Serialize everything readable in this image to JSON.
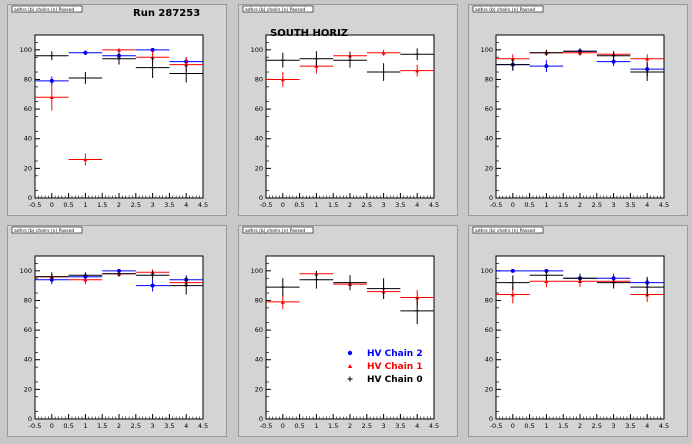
{
  "legend_entries": [
    {
      "label": "HV Chain 2",
      "color": "#0000ff",
      "marker": "circle"
    },
    {
      "label": "HV Chain 1",
      "color": "#ff0000",
      "marker": "triangle"
    },
    {
      "label": "HV Chain 0",
      "color": "#000000",
      "marker": "plus"
    }
  ],
  "chart_data": [
    {
      "type": "scatter",
      "histogram_title": "adhrs (b) chelrs (n) Passed",
      "title": "Run 287253",
      "xlim": [
        -0.5,
        4.5
      ],
      "ylim": [
        0,
        110
      ],
      "xticks": [
        "-0.5",
        "0",
        "0.5",
        "1",
        "1.5",
        "2",
        "2.5",
        "3",
        "3.5",
        "4",
        "4.5"
      ],
      "yticks": [
        "0",
        "20",
        "40",
        "60",
        "80",
        "100"
      ],
      "series": [
        {
          "name": "HV Chain 2",
          "color": "#0000ff",
          "x": [
            0,
            1,
            2,
            3,
            4
          ],
          "y": [
            79,
            98,
            96,
            100,
            92
          ],
          "yerr": [
            3,
            1.5,
            3,
            1,
            3
          ]
        },
        {
          "name": "HV Chain 1",
          "color": "#ff0000",
          "x": [
            0,
            1,
            2,
            3,
            4
          ],
          "y": [
            68,
            26,
            100,
            95,
            90
          ],
          "yerr": [
            9,
            4,
            1,
            4,
            5
          ]
        },
        {
          "name": "HV Chain 0",
          "color": "#000000",
          "x": [
            0,
            1,
            2,
            3,
            4
          ],
          "y": [
            96,
            81,
            94,
            88,
            84
          ],
          "yerr": [
            3,
            4,
            4,
            7,
            6
          ]
        }
      ]
    },
    {
      "type": "scatter",
      "histogram_title": "adhrs (b) chelrs (n) Passed",
      "title": "SOUTH HORIZ",
      "xlim": [
        -0.5,
        4.5
      ],
      "ylim": [
        0,
        110
      ],
      "xticks": [
        "-0.5",
        "0",
        "0.5",
        "1",
        "1.5",
        "2",
        "2.5",
        "3",
        "3.5",
        "4",
        "4.5"
      ],
      "yticks": [
        "0",
        "20",
        "40",
        "60",
        "80",
        "100"
      ],
      "series": [
        {
          "name": "HV Chain 1",
          "color": "#ff0000",
          "x": [
            0,
            1,
            2,
            3,
            4
          ],
          "y": [
            80,
            89,
            96,
            98,
            86
          ],
          "yerr": [
            5,
            5,
            3,
            2,
            4
          ]
        },
        {
          "name": "HV Chain 0",
          "color": "#000000",
          "x": [
            0,
            1,
            2,
            3,
            4
          ],
          "y": [
            93,
            94,
            93,
            85,
            97
          ],
          "yerr": [
            5,
            5,
            5,
            6,
            4
          ]
        }
      ]
    },
    {
      "type": "scatter",
      "histogram_title": "adhrs (b) chelrs (n) Passed",
      "xlim": [
        -0.5,
        4.5
      ],
      "ylim": [
        0,
        110
      ],
      "xticks": [
        "-0.5",
        "0",
        "0.5",
        "1",
        "1.5",
        "2",
        "2.5",
        "3",
        "3.5",
        "4",
        "4.5"
      ],
      "yticks": [
        "0",
        "20",
        "40",
        "60",
        "80",
        "100"
      ],
      "series": [
        {
          "name": "HV Chain 2",
          "color": "#0000ff",
          "x": [
            0,
            1,
            2,
            3,
            4
          ],
          "y": [
            90,
            89,
            99,
            92,
            87
          ],
          "yerr": [
            4,
            4,
            1,
            3,
            5
          ]
        },
        {
          "name": "HV Chain 1",
          "color": "#ff0000",
          "x": [
            0,
            1,
            2,
            3,
            4
          ],
          "y": [
            94,
            98,
            98,
            97,
            94
          ],
          "yerr": [
            3,
            2,
            2,
            2,
            3
          ]
        },
        {
          "name": "HV Chain 0",
          "color": "#000000",
          "x": [
            0,
            1,
            2,
            3,
            4
          ],
          "y": [
            90,
            98,
            99,
            96,
            85
          ],
          "yerr": [
            4,
            2,
            2,
            3,
            6
          ]
        }
      ]
    },
    {
      "type": "scatter",
      "histogram_title": "adhrs (b) chelrs (n) Passed",
      "xlim": [
        -0.5,
        4.5
      ],
      "ylim": [
        0,
        110
      ],
      "xticks": [
        "-0.5",
        "0",
        "0.5",
        "1",
        "1.5",
        "2",
        "2.5",
        "3",
        "3.5",
        "4",
        "4.5"
      ],
      "yticks": [
        "0",
        "20",
        "40",
        "60",
        "80",
        "100"
      ],
      "series": [
        {
          "name": "HV Chain 2",
          "color": "#0000ff",
          "x": [
            0,
            1,
            2,
            3,
            4
          ],
          "y": [
            94,
            96,
            100,
            90,
            94
          ],
          "yerr": [
            3,
            2,
            1,
            4,
            3
          ]
        },
        {
          "name": "HV Chain 1",
          "color": "#ff0000",
          "x": [
            0,
            1,
            2,
            3,
            4
          ],
          "y": [
            96,
            94,
            98,
            99,
            92
          ],
          "yerr": [
            2,
            3,
            2,
            2,
            3
          ]
        },
        {
          "name": "HV Chain 0",
          "color": "#000000",
          "x": [
            0,
            1,
            2,
            3,
            4
          ],
          "y": [
            96,
            97,
            98,
            97,
            90
          ],
          "yerr": [
            3,
            2,
            2,
            3,
            6
          ]
        }
      ]
    },
    {
      "type": "scatter",
      "histogram_title": "adhrs (b) chelrs (n) Passed",
      "xlim": [
        -0.5,
        4.5
      ],
      "ylim": [
        0,
        110
      ],
      "xticks": [
        "-0.5",
        "0",
        "0.5",
        "1",
        "1.5",
        "2",
        "2.5",
        "3",
        "3.5",
        "4",
        "4.5"
      ],
      "yticks": [
        "0",
        "20",
        "40",
        "60",
        "80",
        "100"
      ],
      "legend": "bottom-right",
      "series": [
        {
          "name": "HV Chain 1",
          "color": "#ff0000",
          "x": [
            0,
            1,
            2,
            3,
            4
          ],
          "y": [
            79,
            98,
            91,
            86,
            82
          ],
          "yerr": [
            5,
            2,
            4,
            5,
            5
          ]
        },
        {
          "name": "HV Chain 0",
          "color": "#000000",
          "x": [
            0,
            1,
            2,
            3,
            4
          ],
          "y": [
            89,
            94,
            92,
            88,
            73
          ],
          "yerr": [
            6,
            6,
            5,
            7,
            9
          ]
        }
      ]
    },
    {
      "type": "scatter",
      "histogram_title": "adhrs (b) chelrs (n) Passed",
      "xlim": [
        -0.5,
        4.5
      ],
      "ylim": [
        0,
        110
      ],
      "xticks": [
        "-0.5",
        "0",
        "0.5",
        "1",
        "1.5",
        "2",
        "2.5",
        "3",
        "3.5",
        "4",
        "4.5"
      ],
      "yticks": [
        "0",
        "20",
        "40",
        "60",
        "80",
        "100"
      ],
      "series": [
        {
          "name": "HV Chain 2",
          "color": "#0000ff",
          "x": [
            0,
            1,
            2,
            3,
            4
          ],
          "y": [
            100,
            100,
            95,
            95,
            92
          ],
          "yerr": [
            1,
            1,
            3,
            3,
            4
          ]
        },
        {
          "name": "HV Chain 1",
          "color": "#ff0000",
          "x": [
            0,
            1,
            2,
            3,
            4
          ],
          "y": [
            84,
            93,
            93,
            93,
            84
          ],
          "yerr": [
            6,
            4,
            4,
            4,
            5
          ]
        },
        {
          "name": "HV Chain 0",
          "color": "#000000",
          "x": [
            0,
            1,
            2,
            3,
            4
          ],
          "y": [
            92,
            97,
            95,
            92,
            89
          ],
          "yerr": [
            5,
            3,
            3,
            4,
            6
          ]
        }
      ]
    }
  ]
}
